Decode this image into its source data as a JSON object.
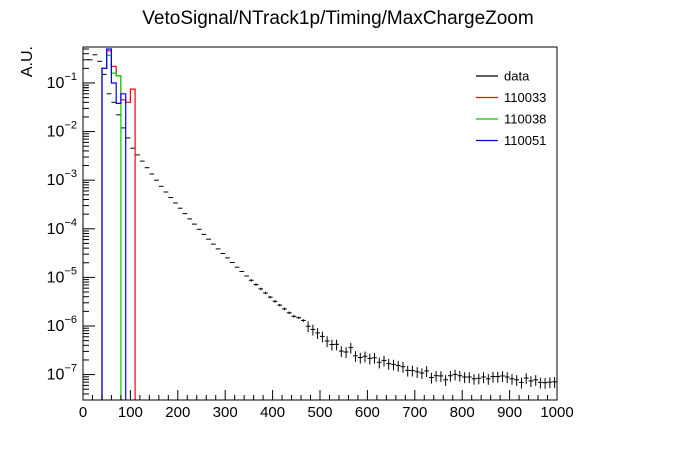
{
  "chart_data": {
    "type": "histogram",
    "title": "VetoSignal/NTrack1p/Timing/MaxChargeZoom",
    "xlabel": "",
    "ylabel": "A.U.",
    "xlim": [
      0,
      1000
    ],
    "ylim": [
      3e-08,
      0.55
    ],
    "yscale": "log",
    "grid": false,
    "legend_position": "top-right",
    "x_ticks": [
      0,
      100,
      200,
      300,
      400,
      500,
      600,
      700,
      800,
      900,
      1000
    ],
    "x_tick_labels": [
      "0",
      "100",
      "200",
      "300",
      "400",
      "500",
      "600",
      "700",
      "800",
      "900",
      "1000"
    ],
    "y_ticks": [
      1e-07,
      1e-06,
      1e-05,
      0.0001,
      0.001,
      0.01,
      0.1
    ],
    "y_tick_labels": [
      {
        "base": "10",
        "exp": "−7"
      },
      {
        "base": "10",
        "exp": "−6"
      },
      {
        "base": "10",
        "exp": "−5"
      },
      {
        "base": "10",
        "exp": "−4"
      },
      {
        "base": "10",
        "exp": "−3"
      },
      {
        "base": "10",
        "exp": "−2"
      },
      {
        "base": "10",
        "exp": "−1"
      }
    ],
    "bin_width": 10,
    "legend": [
      {
        "label": "data",
        "color": "#000000"
      },
      {
        "label": "110033",
        "color": "#ff0000"
      },
      {
        "label": "110038",
        "color": "#00cc00"
      },
      {
        "label": "110051",
        "color": "#0000ff"
      }
    ],
    "series": [
      {
        "name": "data",
        "color": "#000000",
        "style": "points_with_errors",
        "x": [
          5,
          15,
          25,
          35,
          45,
          55,
          65,
          75,
          85,
          95,
          105,
          115,
          125,
          135,
          145,
          155,
          165,
          175,
          185,
          195,
          205,
          215,
          225,
          235,
          245,
          255,
          265,
          275,
          285,
          295,
          305,
          315,
          325,
          335,
          345,
          355,
          365,
          375,
          385,
          395,
          405,
          415,
          425,
          435,
          445,
          455,
          465,
          475,
          485,
          495,
          505,
          515,
          525,
          535,
          545,
          555,
          565,
          575,
          585,
          595,
          605,
          615,
          625,
          635,
          645,
          655,
          665,
          675,
          685,
          695,
          705,
          715,
          725,
          735,
          745,
          755,
          765,
          775,
          785,
          795,
          805,
          815,
          825,
          835,
          845,
          855,
          865,
          875,
          885,
          895,
          905,
          915,
          925,
          935,
          945,
          955,
          965,
          975,
          985,
          995
        ],
        "y": [
          0.08,
          0.3,
          0.38,
          0.28,
          0.15,
          0.06,
          0.04,
          0.0222,
          0.0119,
          0.0074,
          0.00456,
          0.00331,
          0.00247,
          0.00181,
          0.00134,
          0.001,
          0.00075,
          0.00057,
          0.00044,
          0.00034,
          0.000265,
          0.000205,
          0.00016,
          0.000125,
          9.75e-05,
          7.65e-05,
          6.1e-05,
          4.85e-05,
          3.85e-05,
          3.1e-05,
          2.52e-05,
          2.02e-05,
          1.62e-05,
          1.32e-05,
          1.07e-05,
          8.7e-06,
          7.1e-06,
          5.8e-06,
          4.78e-06,
          3.93e-06,
          3.22e-06,
          2.69e-06,
          2.25e-06,
          1.87e-06,
          1.58e-06,
          1.48e-06,
          1.3e-06,
          9.9e-07,
          8.5e-07,
          7.2e-07,
          6.1e-07,
          4.9e-07,
          4.15e-07,
          4.2e-07,
          3.05e-07,
          2.92e-07,
          3.6e-07,
          2.43e-07,
          2.25e-07,
          2.38e-07,
          2.15e-07,
          2.22e-07,
          1.79e-07,
          1.96e-07,
          1.68e-07,
          1.62e-07,
          1.53e-07,
          1.45e-07,
          1.22e-07,
          1.22e-07,
          1.14e-07,
          1.08e-07,
          1.19e-07,
          8.7e-08,
          9.5e-08,
          9.4e-08,
          7.8e-08,
          9.5e-08,
          1.01e-07,
          9.5e-08,
          8.9e-08,
          8.9e-08,
          8.2e-08,
          8.4e-08,
          8.9e-08,
          8.2e-08,
          9.1e-08,
          9.1e-08,
          9.4e-08,
          8.9e-08,
          8.2e-08,
          7.8e-08,
          6.9e-08,
          8.5e-08,
          7.4e-08,
          7.8e-08,
          6.9e-08,
          6.8e-08,
          7e-08,
          7.1e-08
        ],
        "xerr": 5
      },
      {
        "name": "110033",
        "color": "#ff0000",
        "style": "step",
        "bin_edges": [
          40,
          50,
          60,
          70,
          80,
          90,
          100,
          110
        ],
        "values": [
          0.2,
          0.46,
          0.22,
          0.14,
          0.045,
          0.04,
          0.075
        ]
      },
      {
        "name": "110038",
        "color": "#00cc00",
        "style": "step",
        "bin_edges": [
          40,
          50,
          60,
          70,
          80
        ],
        "values": [
          0.2,
          0.37,
          0.16,
          0.14
        ]
      },
      {
        "name": "110051",
        "color": "#0000ff",
        "style": "step",
        "bin_edges": [
          40,
          50,
          60,
          70,
          80,
          90
        ],
        "values": [
          0.2,
          0.5,
          0.1,
          0.038,
          0.06
        ]
      }
    ]
  }
}
